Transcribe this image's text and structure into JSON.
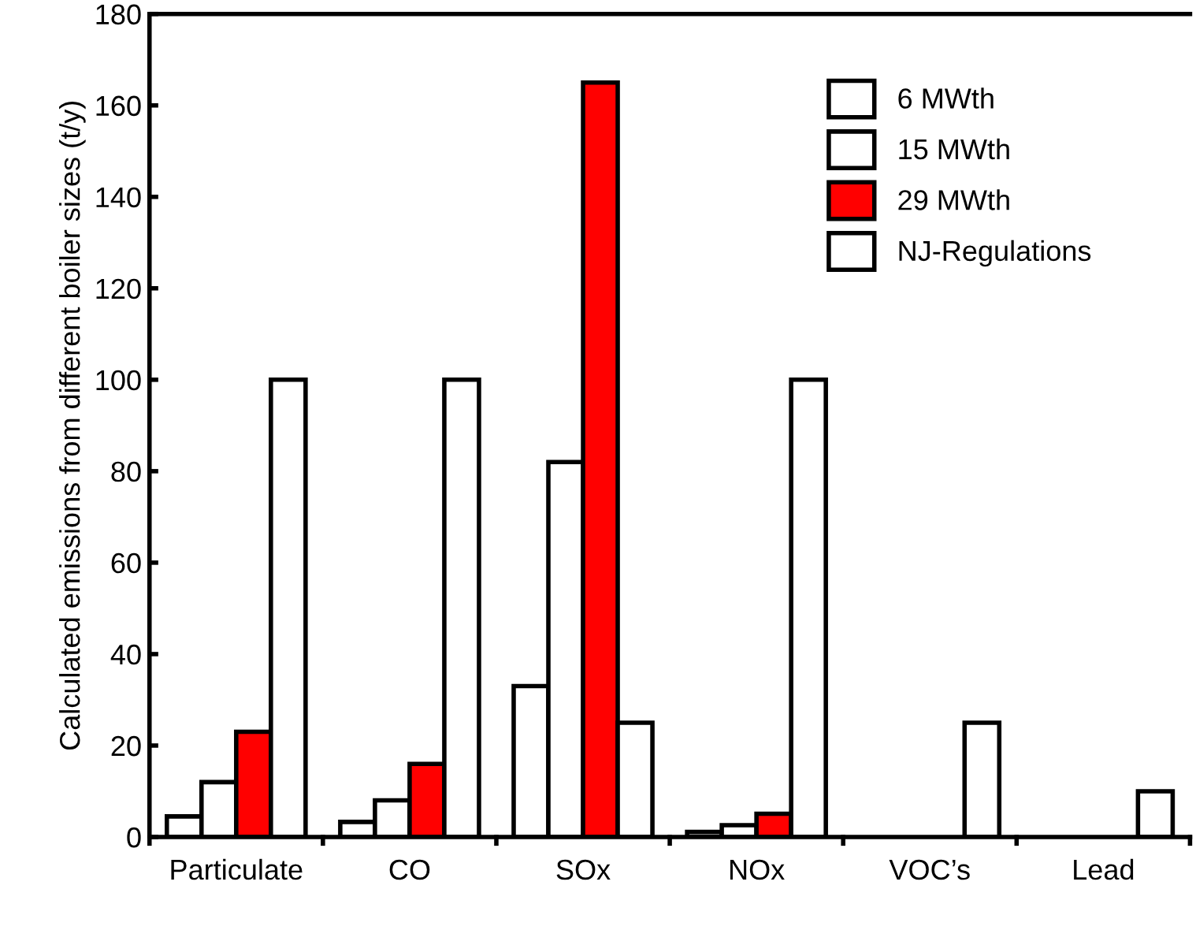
{
  "chart_data": {
    "type": "bar",
    "ylabel": "Calculated emissions from different boiler sizes (t/y)",
    "categories": [
      "Particulate",
      "CO",
      "SOx",
      "NOx",
      "VOC’s",
      "Lead"
    ],
    "series": [
      {
        "name": "6 MWth",
        "color": "#ffffff",
        "values": [
          4.5,
          3.3,
          33,
          1.1,
          null,
          null
        ]
      },
      {
        "name": "15 MWth",
        "color": "#ffffff",
        "values": [
          12,
          8,
          82,
          2.6,
          null,
          null
        ]
      },
      {
        "name": "29 MWth",
        "color": "#ff0000",
        "values": [
          23,
          16,
          165,
          5.1,
          null,
          null
        ]
      },
      {
        "name": "NJ-Regulations",
        "color": "#ffffff",
        "values": [
          100,
          100,
          25,
          100,
          25,
          10
        ]
      }
    ],
    "ylim": [
      0,
      180
    ],
    "yticks": [
      0,
      20,
      40,
      60,
      80,
      100,
      120,
      140,
      160,
      180
    ],
    "grid": false,
    "legend": "top right"
  }
}
